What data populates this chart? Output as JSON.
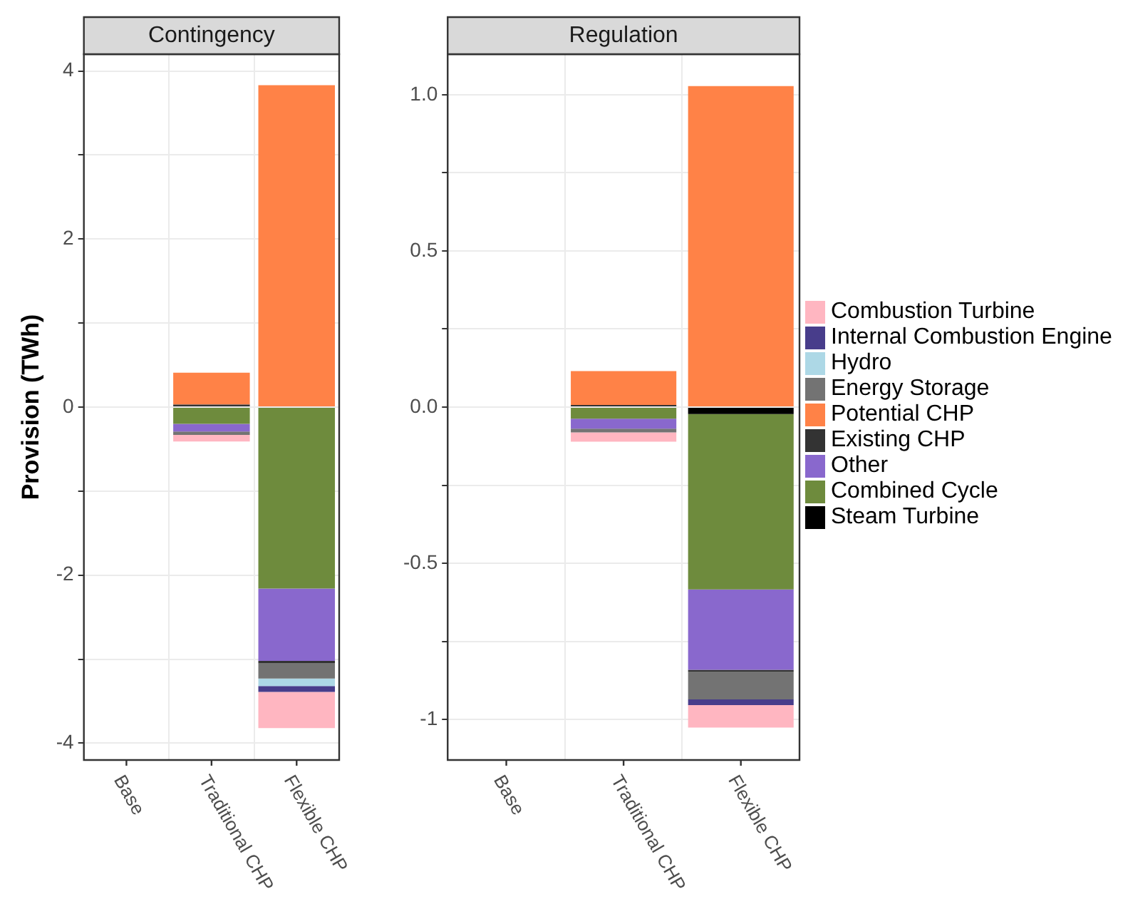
{
  "chart_data": [
    {
      "type": "bar",
      "title": "Contingency",
      "ylabel": "Provision (TWh)",
      "stacked": true,
      "grid": true,
      "legend": false,
      "categories": [
        "Base",
        "Traditional CHP",
        "Flexible CHP"
      ],
      "ylim": [
        -4.2,
        4.2
      ],
      "yticks": [
        -4,
        {
          "value": -3,
          "label": null
        },
        -2,
        {
          "value": -1,
          "label": null
        },
        0,
        {
          "value": 1,
          "label": null
        },
        2,
        {
          "value": 3,
          "label": null
        },
        4
      ],
      "series": [
        {
          "color": "#000000",
          "values": [
            0,
            0,
            0
          ]
        },
        {
          "color": "#6e8b3d",
          "values": [
            0,
            -0.2,
            -2.16
          ]
        },
        {
          "color": "#8968cd",
          "values": [
            0,
            -0.09,
            -0.86
          ]
        },
        {
          "color": "#333333",
          "values": [
            0,
            0.03,
            -0.03
          ]
        },
        {
          "color": "#ff8247",
          "values": [
            0,
            0.38,
            3.83
          ]
        },
        {
          "color": "#737373",
          "values": [
            0,
            -0.04,
            -0.18
          ]
        },
        {
          "color": "#add8e6",
          "values": [
            0,
            0,
            -0.09
          ]
        },
        {
          "color": "#483d8b",
          "values": [
            0,
            0,
            -0.07
          ]
        },
        {
          "color": "#ffb6c1",
          "values": [
            0,
            -0.08,
            -0.43
          ]
        }
      ]
    },
    {
      "type": "bar",
      "title": "Regulation",
      "stacked": true,
      "grid": true,
      "legend": "right",
      "categories": [
        "Base",
        "Traditional CHP",
        "Flexible CHP"
      ],
      "ylim": [
        -1.13,
        1.13
      ],
      "yticks": [
        -1.0,
        {
          "value": -0.75,
          "label": null
        },
        -0.5,
        {
          "value": -0.25,
          "label": null
        },
        {
          "value": 0,
          "label": "0.0"
        },
        {
          "value": 0.25,
          "label": null
        },
        0.5,
        {
          "value": 0.75,
          "label": null
        },
        {
          "value": 1,
          "label": "1.0"
        }
      ],
      "series": [
        {
          "name": "Steam Turbine",
          "color": "#000000",
          "values": [
            0,
            0,
            -0.022
          ]
        },
        {
          "name": "Combined Cycle",
          "color": "#6e8b3d",
          "values": [
            0,
            -0.037,
            -0.562
          ]
        },
        {
          "name": "Other",
          "color": "#8968cd",
          "values": [
            0,
            -0.032,
            -0.257
          ]
        },
        {
          "name": "Existing CHP",
          "color": "#333333",
          "values": [
            0,
            0.007,
            -0.007
          ]
        },
        {
          "name": "Potential CHP",
          "color": "#ff8247",
          "values": [
            0,
            0.108,
            1.028
          ]
        },
        {
          "name": "Energy Storage",
          "color": "#737373",
          "values": [
            0,
            -0.012,
            -0.088
          ]
        },
        {
          "name": "Hydro",
          "color": "#add8e6",
          "values": [
            0,
            0,
            0
          ]
        },
        {
          "name": "Internal Combustion Engine",
          "color": "#483d8b",
          "values": [
            0,
            0,
            -0.018
          ]
        },
        {
          "name": "Combustion Turbine",
          "color": "#ffb6c1",
          "values": [
            0,
            -0.03,
            -0.072
          ]
        }
      ]
    }
  ]
}
